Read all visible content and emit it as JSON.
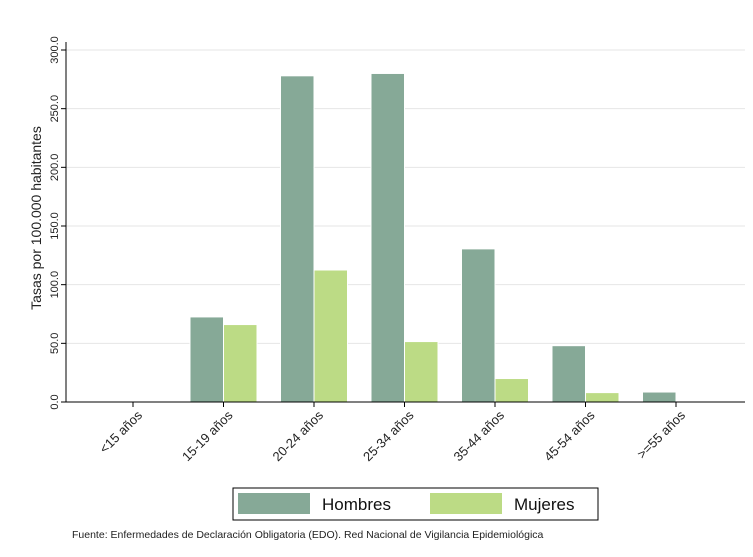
{
  "chart_data": {
    "type": "bar",
    "categories": [
      "<15 años",
      "15-19 años",
      "20-24 años",
      "25-34 años",
      "35-44 años",
      "45-54 años",
      ">=55 años"
    ],
    "series": [
      {
        "name": "Hombres",
        "color": "#86a997",
        "values": [
          0,
          72.5,
          278.0,
          280.0,
          130.5,
          48.0,
          8.5
        ]
      },
      {
        "name": "Mujeres",
        "color": "#bcdb85",
        "values": [
          0,
          66.0,
          112.5,
          51.5,
          20.0,
          8.0,
          0
        ]
      }
    ],
    "ylabel": "Tasas por 100.000 habitantes",
    "ylim": [
      0,
      300
    ],
    "yticks": [
      "0.0",
      "50.0",
      "100.0",
      "150.0",
      "200.0",
      "250.0",
      "300.0"
    ],
    "grid": true,
    "legend": "bottom",
    "source": "Fuente: Enfermedades de Declaración Obligatoria (EDO). Red Nacional de Vigilancia Epidemiológica"
  }
}
